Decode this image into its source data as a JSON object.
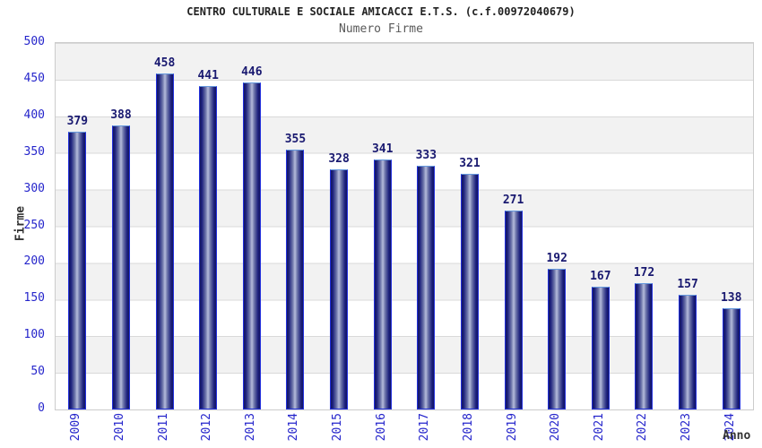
{
  "chart_data": {
    "type": "bar",
    "title": "CENTRO CULTURALE E SOCIALE AMICACCI E.T.S. (c.f.00972040679)",
    "subtitle": "Numero Firme",
    "xlabel": "Anno",
    "ylabel": "Firme",
    "categories": [
      "2009",
      "2010",
      "2011",
      "2012",
      "2013",
      "2014",
      "2015",
      "2016",
      "2017",
      "2018",
      "2019",
      "2020",
      "2021",
      "2022",
      "2023",
      "2024"
    ],
    "values": [
      379,
      388,
      458,
      441,
      446,
      355,
      328,
      341,
      333,
      321,
      271,
      192,
      167,
      172,
      157,
      138
    ],
    "ylim": [
      0,
      500
    ],
    "yticks": [
      0,
      50,
      100,
      150,
      200,
      250,
      300,
      350,
      400,
      450,
      500
    ],
    "grid": "horizontal gridlines every 50 with alternating gray/white bands",
    "legend": false,
    "colors": {
      "axis_tick_blue": "#2525cb",
      "value_label_navy": "#191970",
      "bar_border_blue": "#2230dd",
      "bar_dark_edge": "#131660",
      "bar_light_center": "#b8bedb",
      "band_gray": "#f2f2f2",
      "grid_line": "#d9d9d9",
      "plot_border": "#cccccc",
      "title_color": "#222222",
      "subtitle_color": "#595959",
      "axis_title_color": "#333333",
      "background": "#ffffff"
    }
  }
}
